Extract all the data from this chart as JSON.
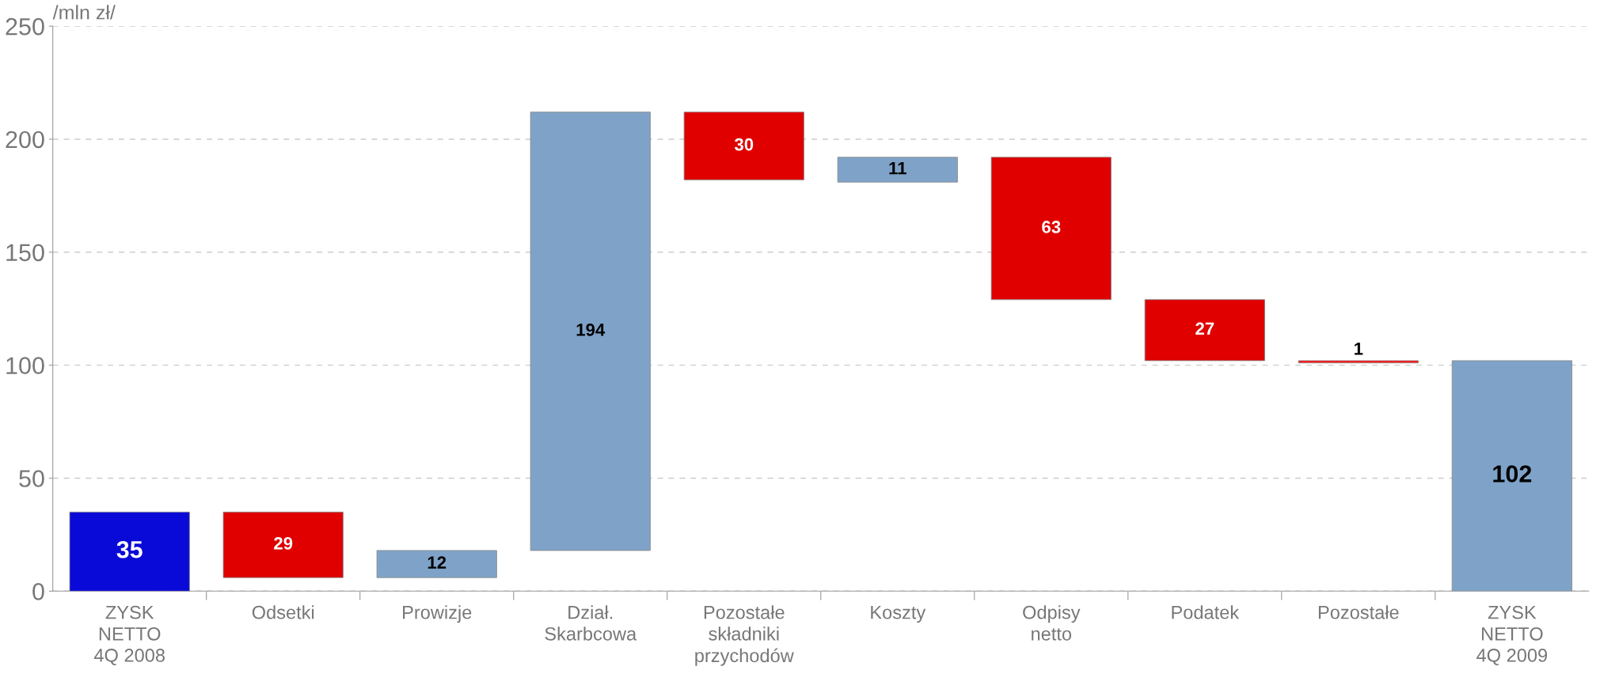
{
  "chart_data": {
    "type": "bar",
    "ylabel": "/mln zł/",
    "categories": [
      "ZYSK\nNETTO\n4Q 2008",
      "Odsetki",
      "Prowizje",
      "Dział.\nSkarbcowa",
      "Pozostałe\nskładniki\nprzychodów",
      "Koszty",
      "Odpisy\nnetto",
      "Podatek",
      "Pozostałe",
      "ZYSK\nNETTO\n4Q 2009"
    ],
    "base": [
      0,
      35,
      6,
      18,
      212,
      181,
      192,
      129,
      102,
      0
    ],
    "values": [
      35,
      -29,
      12,
      194,
      -30,
      11,
      -63,
      -27,
      -1,
      102
    ],
    "value_labels": [
      "35",
      "29",
      "12",
      "194",
      "30",
      "11",
      "63",
      "27",
      "1",
      "102"
    ],
    "colors": [
      "#0a0ad8",
      "#e00000",
      "#7fa3c8",
      "#7fa3c8",
      "#e00000",
      "#7fa3c8",
      "#e00000",
      "#e00000",
      "#ff1010",
      "#7fa3c8"
    ],
    "ylim": [
      0,
      250
    ],
    "yticks": [
      0,
      50,
      100,
      150,
      200,
      250
    ],
    "grid": "y"
  }
}
